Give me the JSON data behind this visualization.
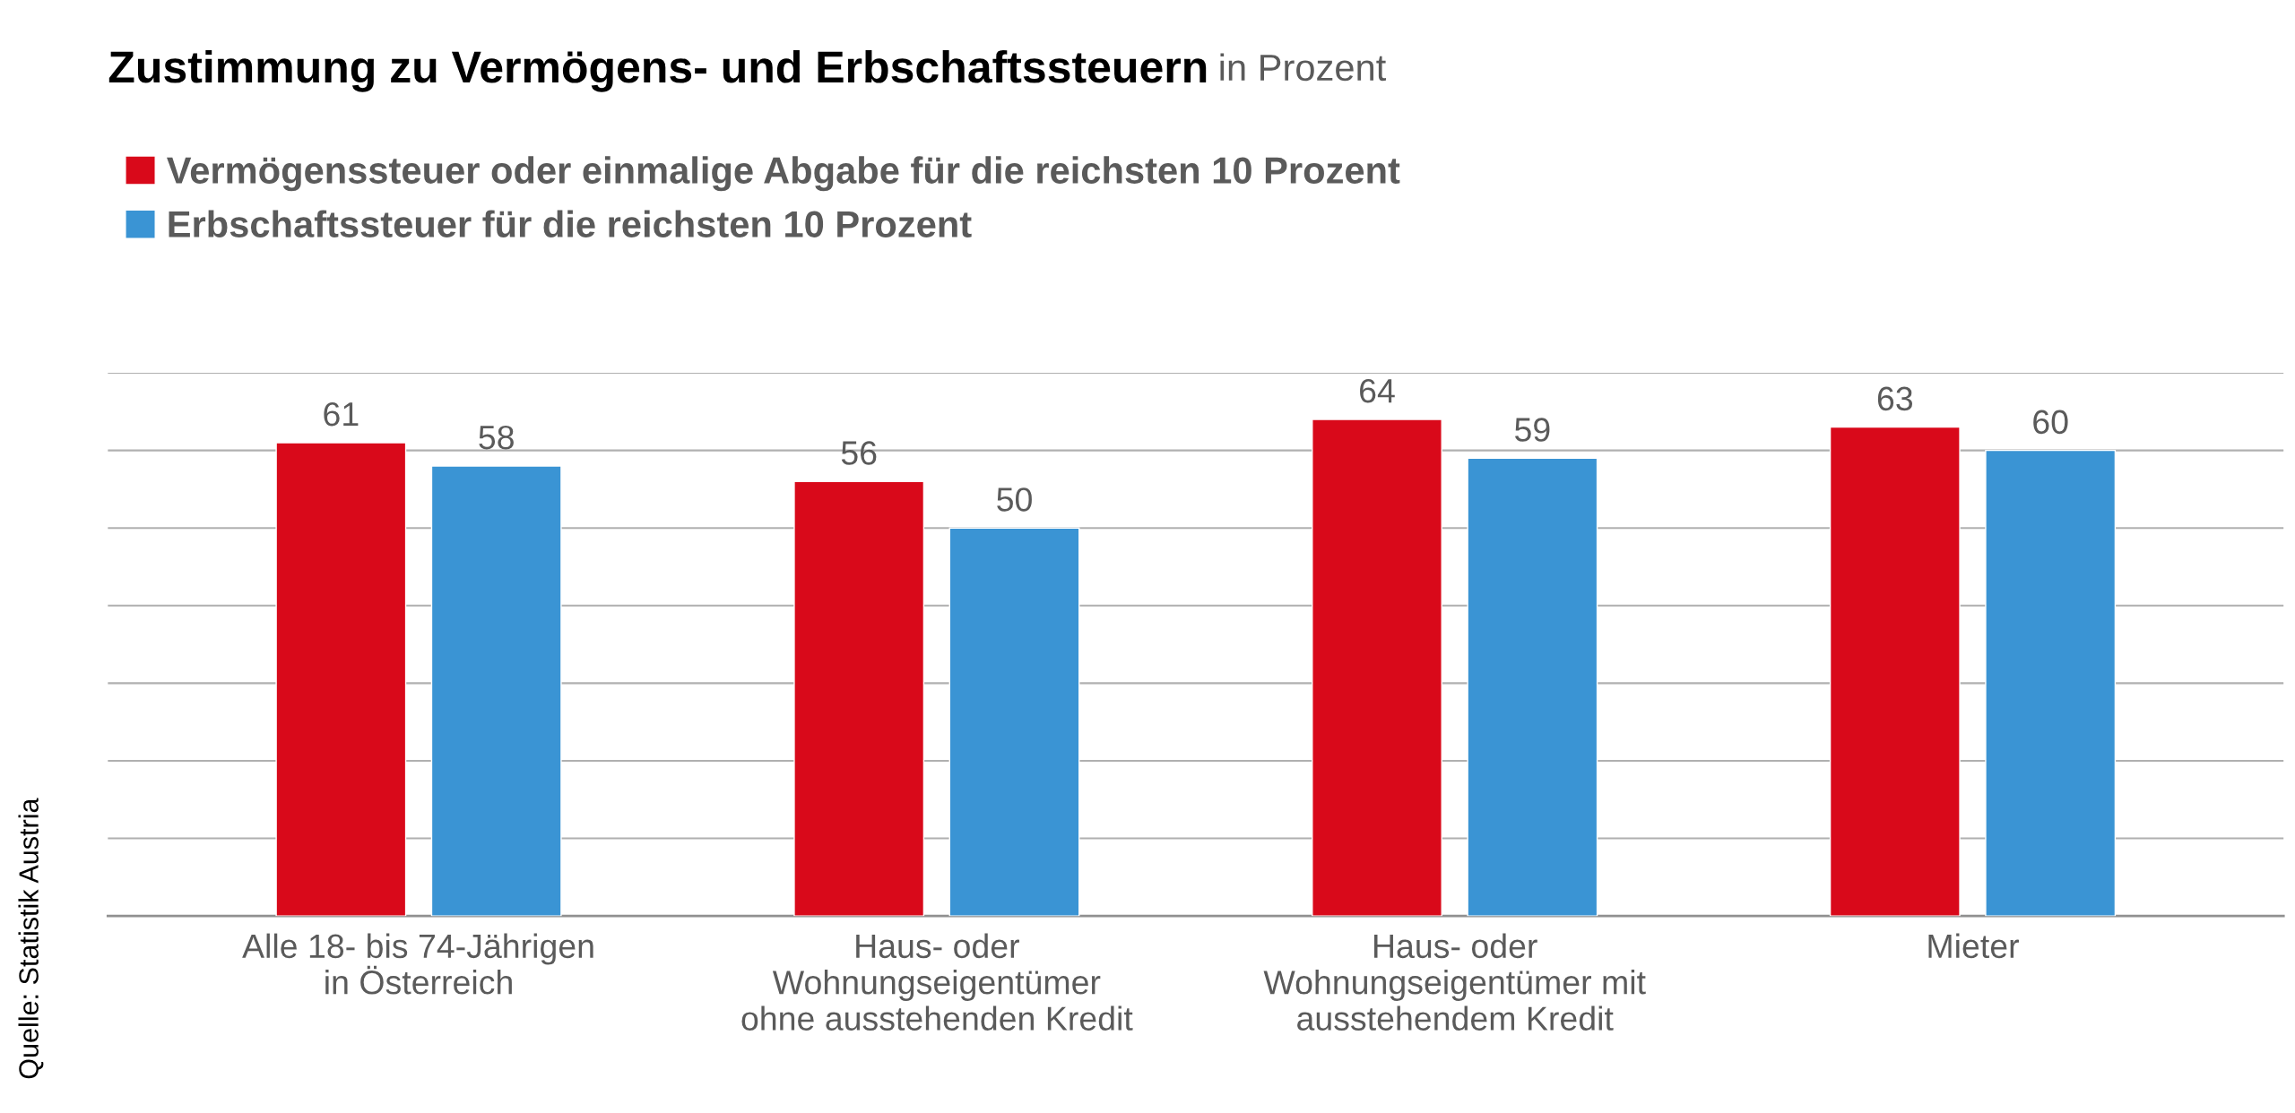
{
  "chart_data": {
    "type": "bar",
    "title": "Zustimmung zu Vermögens- und Erbschaftssteuern",
    "subtitle": "in Prozent",
    "categories": [
      "Alle 18- bis 74-Jährigen\nin Österreich",
      "Haus- oder\nWohnungseigentümer\nohne ausstehenden Kredit",
      "Haus- oder\nWohnungseigentümer mit\nausstehendem Kredit",
      "Mieter"
    ],
    "series": [
      {
        "name": "Vermögenssteuer oder einmalige Abgabe für die reichsten 10 Prozent",
        "color": "#d9091a",
        "values": [
          61,
          56,
          64,
          63
        ]
      },
      {
        "name": "Erbschaftssteuer für die reichsten 10 Prozent",
        "color": "#3a94d4",
        "values": [
          58,
          50,
          59,
          60
        ]
      }
    ],
    "ylim": [
      0,
      70
    ],
    "yticks": [
      {
        "value": 0,
        "label": null
      },
      {
        "value": 10,
        "label": null
      },
      {
        "value": 20,
        "label": null
      },
      {
        "value": 30,
        "label": null
      },
      {
        "value": 40,
        "label": null
      },
      {
        "value": 50,
        "label": null
      },
      {
        "value": 60,
        "label": null
      },
      {
        "value": 70,
        "label": null
      }
    ],
    "tick_labels": "x",
    "grid": "y",
    "legend": "top left",
    "data_labels": true,
    "annotations": [
      "Quelle: Statistik Austria"
    ]
  }
}
